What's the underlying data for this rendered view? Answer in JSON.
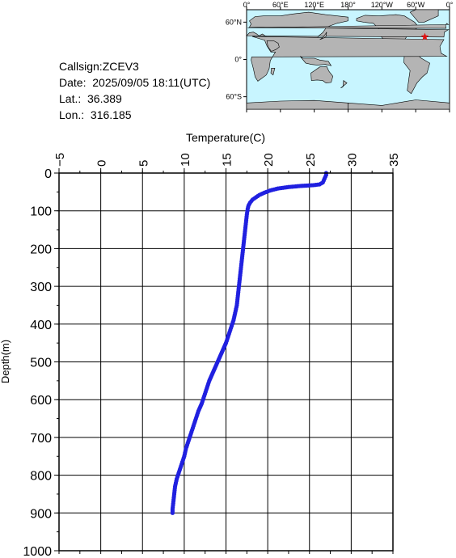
{
  "info": {
    "callsign": "Callsign:ZCEV3",
    "date": "Date:  2025/09/05 18:11(UTC)",
    "lat": "Lat.:  36.389",
    "lon": "Lon.:  316.185"
  },
  "map": {
    "lon_labels": [
      "0°",
      "60°E",
      "120°E",
      "180°",
      "120°W",
      "60°W",
      "0°"
    ],
    "lat_labels": [
      "60°N",
      "0°",
      "60°S"
    ],
    "colors": {
      "ocean": "#c8f5ff",
      "land": "#b4b4b4",
      "marker": "#e01010"
    },
    "marker": {
      "lat": 36.389,
      "lon": 316.185
    }
  },
  "chart_data": {
    "type": "scatter",
    "xlabel": "Temperature(C)",
    "ylabel": "Depth(m)",
    "xlim": [
      -5,
      35
    ],
    "ylim": [
      0,
      1000
    ],
    "y_inverted": true,
    "x_ticks": [
      -5,
      0,
      5,
      10,
      15,
      20,
      25,
      30,
      35
    ],
    "y_ticks": [
      0,
      100,
      200,
      300,
      400,
      500,
      600,
      700,
      800,
      900,
      1000
    ],
    "grid": true,
    "marker_color": "#2020e0",
    "points": [
      [
        27.0,
        0
      ],
      [
        27.0,
        5
      ],
      [
        26.9,
        10
      ],
      [
        26.8,
        15
      ],
      [
        26.7,
        20
      ],
      [
        26.6,
        25
      ],
      [
        26.2,
        30
      ],
      [
        25.5,
        32
      ],
      [
        24.0,
        34
      ],
      [
        22.5,
        37
      ],
      [
        21.2,
        41
      ],
      [
        20.3,
        46
      ],
      [
        19.6,
        52
      ],
      [
        19.0,
        58
      ],
      [
        18.6,
        64
      ],
      [
        18.2,
        70
      ],
      [
        17.9,
        78
      ],
      [
        17.7,
        86
      ],
      [
        17.6,
        95
      ],
      [
        17.5,
        110
      ],
      [
        17.4,
        130
      ],
      [
        17.3,
        150
      ],
      [
        17.2,
        170
      ],
      [
        17.1,
        190
      ],
      [
        17.0,
        210
      ],
      [
        16.9,
        230
      ],
      [
        16.8,
        250
      ],
      [
        16.7,
        270
      ],
      [
        16.6,
        290
      ],
      [
        16.5,
        310
      ],
      [
        16.4,
        330
      ],
      [
        16.3,
        350
      ],
      [
        16.1,
        370
      ],
      [
        15.9,
        390
      ],
      [
        15.6,
        410
      ],
      [
        15.3,
        430
      ],
      [
        15.0,
        450
      ],
      [
        14.6,
        470
      ],
      [
        14.2,
        490
      ],
      [
        13.8,
        510
      ],
      [
        13.4,
        530
      ],
      [
        13.0,
        550
      ],
      [
        12.7,
        570
      ],
      [
        12.4,
        590
      ],
      [
        12.1,
        610
      ],
      [
        11.7,
        630
      ],
      [
        11.4,
        650
      ],
      [
        11.1,
        670
      ],
      [
        10.8,
        690
      ],
      [
        10.5,
        710
      ],
      [
        10.2,
        730
      ],
      [
        10.0,
        750
      ],
      [
        9.7,
        770
      ],
      [
        9.4,
        790
      ],
      [
        9.1,
        810
      ],
      [
        8.9,
        830
      ],
      [
        8.8,
        850
      ],
      [
        8.7,
        870
      ],
      [
        8.6,
        890
      ],
      [
        8.6,
        900
      ]
    ]
  }
}
